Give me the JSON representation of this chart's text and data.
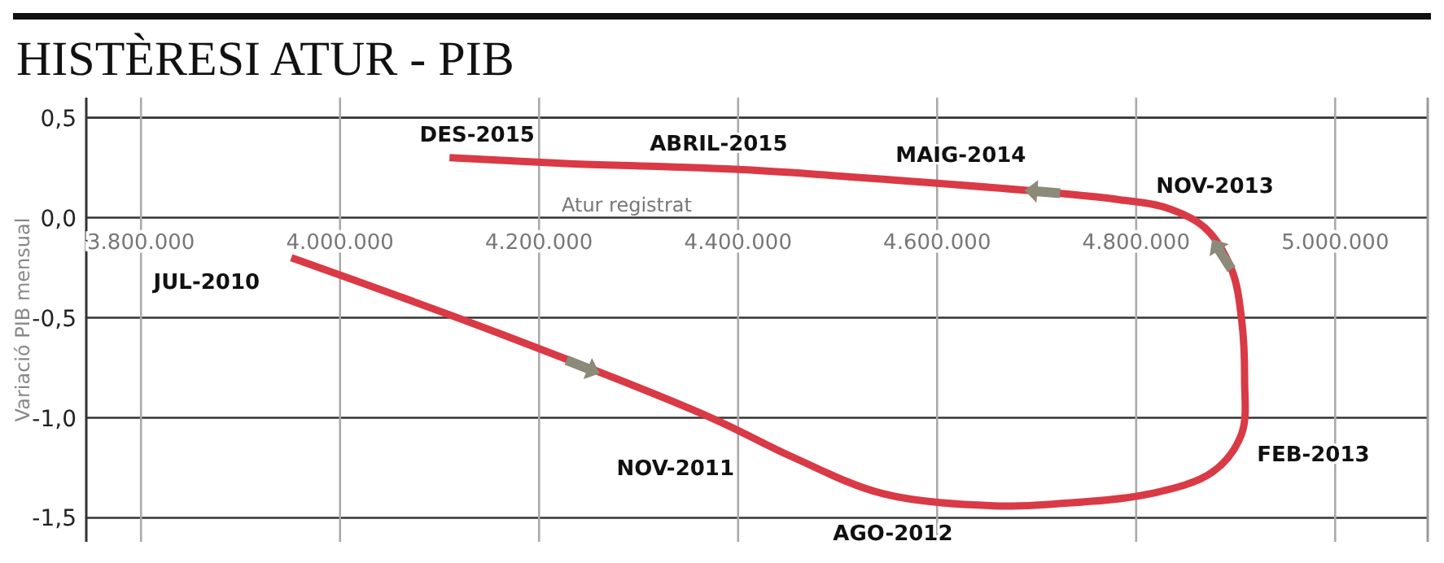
{
  "chart_data": {
    "type": "line",
    "title": "HISTÈRESI ATUR - PIB",
    "xlabel": "Atur registrat",
    "ylabel": "Variació PIB mensual",
    "xlim": [
      3745000,
      5093000
    ],
    "ylim": [
      -1.62,
      0.6
    ],
    "xticks": [
      {
        "value": 3800000,
        "label": "3.800.000"
      },
      {
        "value": 4000000,
        "label": "4.000.000"
      },
      {
        "value": 4200000,
        "label": "4.200.000"
      },
      {
        "value": 4400000,
        "label": "4.400.000"
      },
      {
        "value": 4600000,
        "label": "4.600.000"
      },
      {
        "value": 4800000,
        "label": "4.800.000"
      },
      {
        "value": 5000000,
        "label": "5.000.000"
      }
    ],
    "yticks": [
      {
        "value": 0.5,
        "label": "0,5"
      },
      {
        "value": 0,
        "label": "0,0"
      },
      {
        "value": -0.5,
        "label": "-0,5"
      },
      {
        "value": -1,
        "label": "-1,0"
      },
      {
        "value": -1.5,
        "label": "-1,5"
      }
    ],
    "grid": true,
    "marker": "none",
    "line_style": "solid",
    "series": [
      {
        "color": "#d93a45",
        "x": [
          3951000,
          4161000,
          4373000,
          4452000,
          4546000,
          4657000,
          4720000,
          4814000,
          4877000,
          4906000,
          4909000,
          4906000,
          4896000,
          4869000,
          4830000,
          4783000,
          4704000,
          4578000,
          4405000,
          4231000,
          4110000
        ],
        "values": [
          -0.2,
          -0.58,
          -1.0,
          -1.19,
          -1.38,
          -1.44,
          -1.43,
          -1.38,
          -1.27,
          -1.08,
          -0.81,
          -0.51,
          -0.26,
          -0.05,
          0.05,
          0.09,
          0.13,
          0.18,
          0.24,
          0.27,
          0.3
        ]
      }
    ],
    "annotations": [
      {
        "text": "JUL-2010",
        "x": 3951000,
        "y": -0.2
      },
      {
        "text": "NOV-2011",
        "x": 4373000,
        "y": -1.0
      },
      {
        "text": "AGO-2012",
        "x": 4657000,
        "y": -1.44
      },
      {
        "text": "FEB-2013",
        "x": 4906000,
        "y": -1.08
      },
      {
        "text": "NOV-2013",
        "x": 4830000,
        "y": 0.05
      },
      {
        "text": "MAIG-2014",
        "x": 4578000,
        "y": 0.18
      },
      {
        "text": "ABRIL-2015",
        "x": 4405000,
        "y": 0.24
      },
      {
        "text": "DES-2015",
        "x": 4110000,
        "y": 0.3
      }
    ]
  }
}
